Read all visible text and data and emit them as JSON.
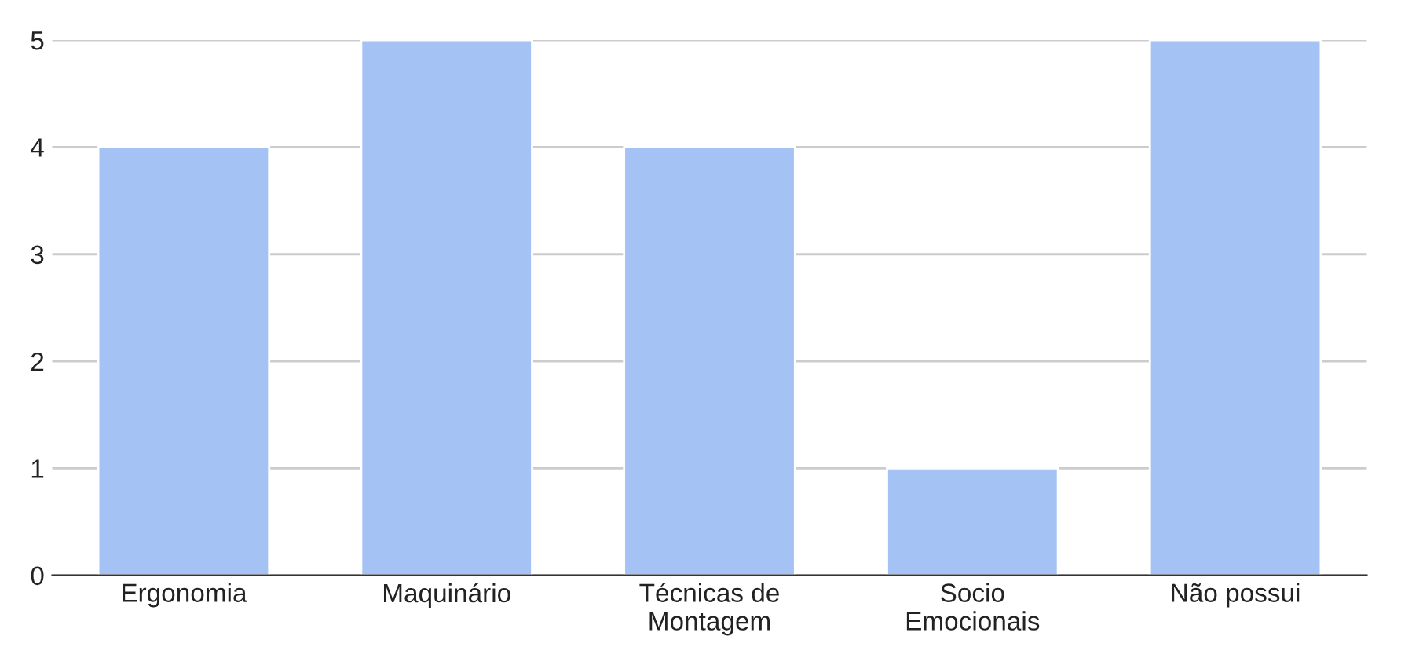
{
  "chart_data": {
    "type": "bar",
    "categories": [
      "Ergonomia",
      "Maquinário",
      "Técnicas de\nMontagem",
      "Socio\nEmocionais",
      "Não possui"
    ],
    "values": [
      4,
      5,
      4,
      1,
      5
    ],
    "color": "#a4c2f4",
    "ylim": [
      0,
      5
    ],
    "yticks": [
      0,
      1,
      2,
      3,
      4,
      5
    ],
    "grid": "y",
    "legend": false
  }
}
